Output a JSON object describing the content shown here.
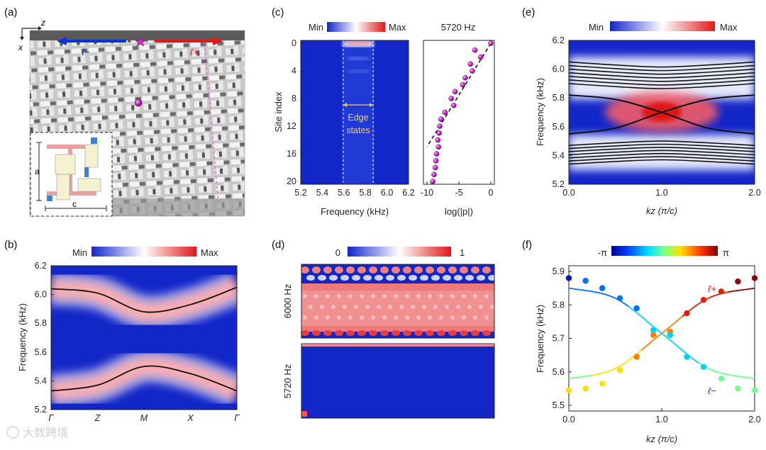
{
  "figure": {
    "panel_labels": [
      "(a)",
      "(b)",
      "(c)",
      "(d)",
      "(e)",
      "(f)"
    ],
    "watermark": "大数跨境",
    "colors": {
      "blue": "#1326c8",
      "white": "#ffffff",
      "red": "#e01818",
      "magenta": "#c020c0",
      "pink_line": "#e070d0"
    }
  },
  "panel_a": {
    "axis_z": "z",
    "axis_x": "x",
    "label_minus": "ℓ−",
    "label_plus": "ℓ+",
    "inset_a": "a",
    "inset_c": "c"
  },
  "panel_b": {
    "colorbar_min": "Min",
    "colorbar_max": "Max",
    "ylabel": "Frequency (kHz)",
    "yticks": [
      "6.2",
      "6.0",
      "5.8",
      "5.6",
      "5.4",
      "5.2"
    ],
    "xticks": [
      "Γ",
      "Z",
      "M",
      "X",
      "Γ"
    ]
  },
  "panel_c": {
    "colorbar_min": "Min",
    "colorbar_max": "Max",
    "ylabel": "Site index",
    "xlabel": "Frequency (kHz)",
    "yticks": [
      "0",
      "4",
      "8",
      "12",
      "16",
      "20"
    ],
    "xticks": [
      "5.2",
      "5.4",
      "5.6",
      "5.8",
      "6.0",
      "6.2"
    ],
    "annotation_line1": "Edge",
    "annotation_line2": "states",
    "right_title": "5720 Hz",
    "right_xlabel": "log(|p|)",
    "right_xticks": [
      "-10",
      "-5",
      "0"
    ]
  },
  "panel_d": {
    "colorbar_min": "0",
    "colorbar_max": "1",
    "top_label": "6000 Hz",
    "bottom_label": "5720 Hz"
  },
  "panel_e": {
    "colorbar_min": "Min",
    "colorbar_max": "Max",
    "ylabel": "Frequency (kHz)",
    "xlabel": "kz (π/c)",
    "yticks": [
      "6.2",
      "6.0",
      "5.8",
      "5.6",
      "5.4",
      "5.2"
    ],
    "xticks": [
      "0.0",
      "1.0",
      "2.0"
    ]
  },
  "panel_f": {
    "colorbar_min": "-π",
    "colorbar_max": "π",
    "ylabel": "Frequency (kHz)",
    "xlabel": "kz (π/c)",
    "yticks": [
      "5.9",
      "5.8",
      "5.7",
      "5.6",
      "5.5"
    ],
    "xticks": [
      "0.0",
      "1.0",
      "2.0"
    ],
    "label_plus": "ℓ+",
    "label_minus": "ℓ−"
  },
  "chart_data": [
    {
      "panel": "b",
      "type": "line",
      "title": "",
      "xlabel": "",
      "ylabel": "Frequency (kHz)",
      "categories": [
        "Γ",
        "Z",
        "M",
        "X",
        "Γ"
      ],
      "ylim": [
        5.2,
        6.2
      ],
      "series": [
        {
          "name": "upper band",
          "values": [
            6.04,
            6.01,
            5.88,
            5.93,
            6.05
          ]
        },
        {
          "name": "lower band",
          "values": [
            5.33,
            5.37,
            5.5,
            5.45,
            5.33
          ]
        }
      ]
    },
    {
      "panel": "c-right",
      "type": "scatter",
      "title": "5720 Hz",
      "xlabel": "log(|p|)",
      "ylabel": "Site index",
      "xlim": [
        -10,
        0
      ],
      "ylim": [
        21,
        0
      ],
      "x": [
        0,
        -2.5,
        -1.6,
        -3.2,
        -2.9,
        -4.0,
        -4.4,
        -5.6,
        -6.2,
        -5.8,
        -7.2,
        -7.8,
        -8.0,
        -8.1,
        -8.3,
        -8.2,
        -8.5,
        -8.6,
        -8.7,
        -8.9,
        -9.1
      ],
      "y": [
        0,
        1,
        2,
        3,
        4,
        5,
        6,
        7,
        8,
        9,
        10,
        11,
        12,
        13,
        14,
        15,
        16,
        17,
        18,
        19,
        20
      ],
      "fit_line": {
        "x": [
          0,
          -10
        ],
        "y": [
          0,
          15
        ]
      }
    },
    {
      "panel": "e",
      "type": "line",
      "title": "",
      "xlabel": "kz (π/c)",
      "ylabel": "Frequency (kHz)",
      "xlim": [
        0,
        2
      ],
      "ylim": [
        5.2,
        6.2
      ],
      "x": [
        0,
        0.5,
        1.0,
        1.5,
        2.0
      ],
      "series": [
        {
          "name": "edge ℓ+",
          "values": [
            5.55,
            5.59,
            5.7,
            5.79,
            5.82
          ]
        },
        {
          "name": "edge ℓ−",
          "values": [
            5.82,
            5.79,
            5.7,
            5.59,
            5.55
          ]
        }
      ],
      "bulk_upper_band_range": [
        5.9,
        6.05
      ],
      "bulk_lower_band_range": [
        5.34,
        5.47
      ]
    },
    {
      "panel": "f",
      "type": "scatter",
      "title": "",
      "xlabel": "kz (π/c)",
      "ylabel": "Frequency (kHz)",
      "xlim": [
        0,
        2
      ],
      "ylim": [
        5.5,
        5.9
      ],
      "points_x": [
        0.0,
        0.18,
        0.36,
        0.55,
        0.73,
        0.91,
        1.09,
        1.27,
        1.45,
        1.64,
        1.82,
        2.0
      ],
      "series": [
        {
          "name": "ℓ+ measured",
          "values": [
            5.545,
            5.55,
            5.565,
            5.605,
            5.645,
            5.71,
            5.72,
            5.775,
            5.815,
            5.84,
            5.87,
            5.88
          ]
        },
        {
          "name": "ℓ− measured",
          "values": [
            5.88,
            5.872,
            5.85,
            5.82,
            5.79,
            5.725,
            5.71,
            5.645,
            5.615,
            5.58,
            5.55,
            5.545
          ]
        }
      ],
      "fit_curves": [
        {
          "name": "ℓ+ fit",
          "kz": [
            0,
            0.5,
            1.0,
            1.5,
            2.0
          ],
          "values": [
            5.58,
            5.61,
            5.715,
            5.82,
            5.85
          ]
        },
        {
          "name": "ℓ− fit",
          "kz": [
            0,
            0.5,
            1.0,
            1.5,
            2.0
          ],
          "values": [
            5.85,
            5.82,
            5.715,
            5.61,
            5.58
          ]
        }
      ]
    }
  ]
}
